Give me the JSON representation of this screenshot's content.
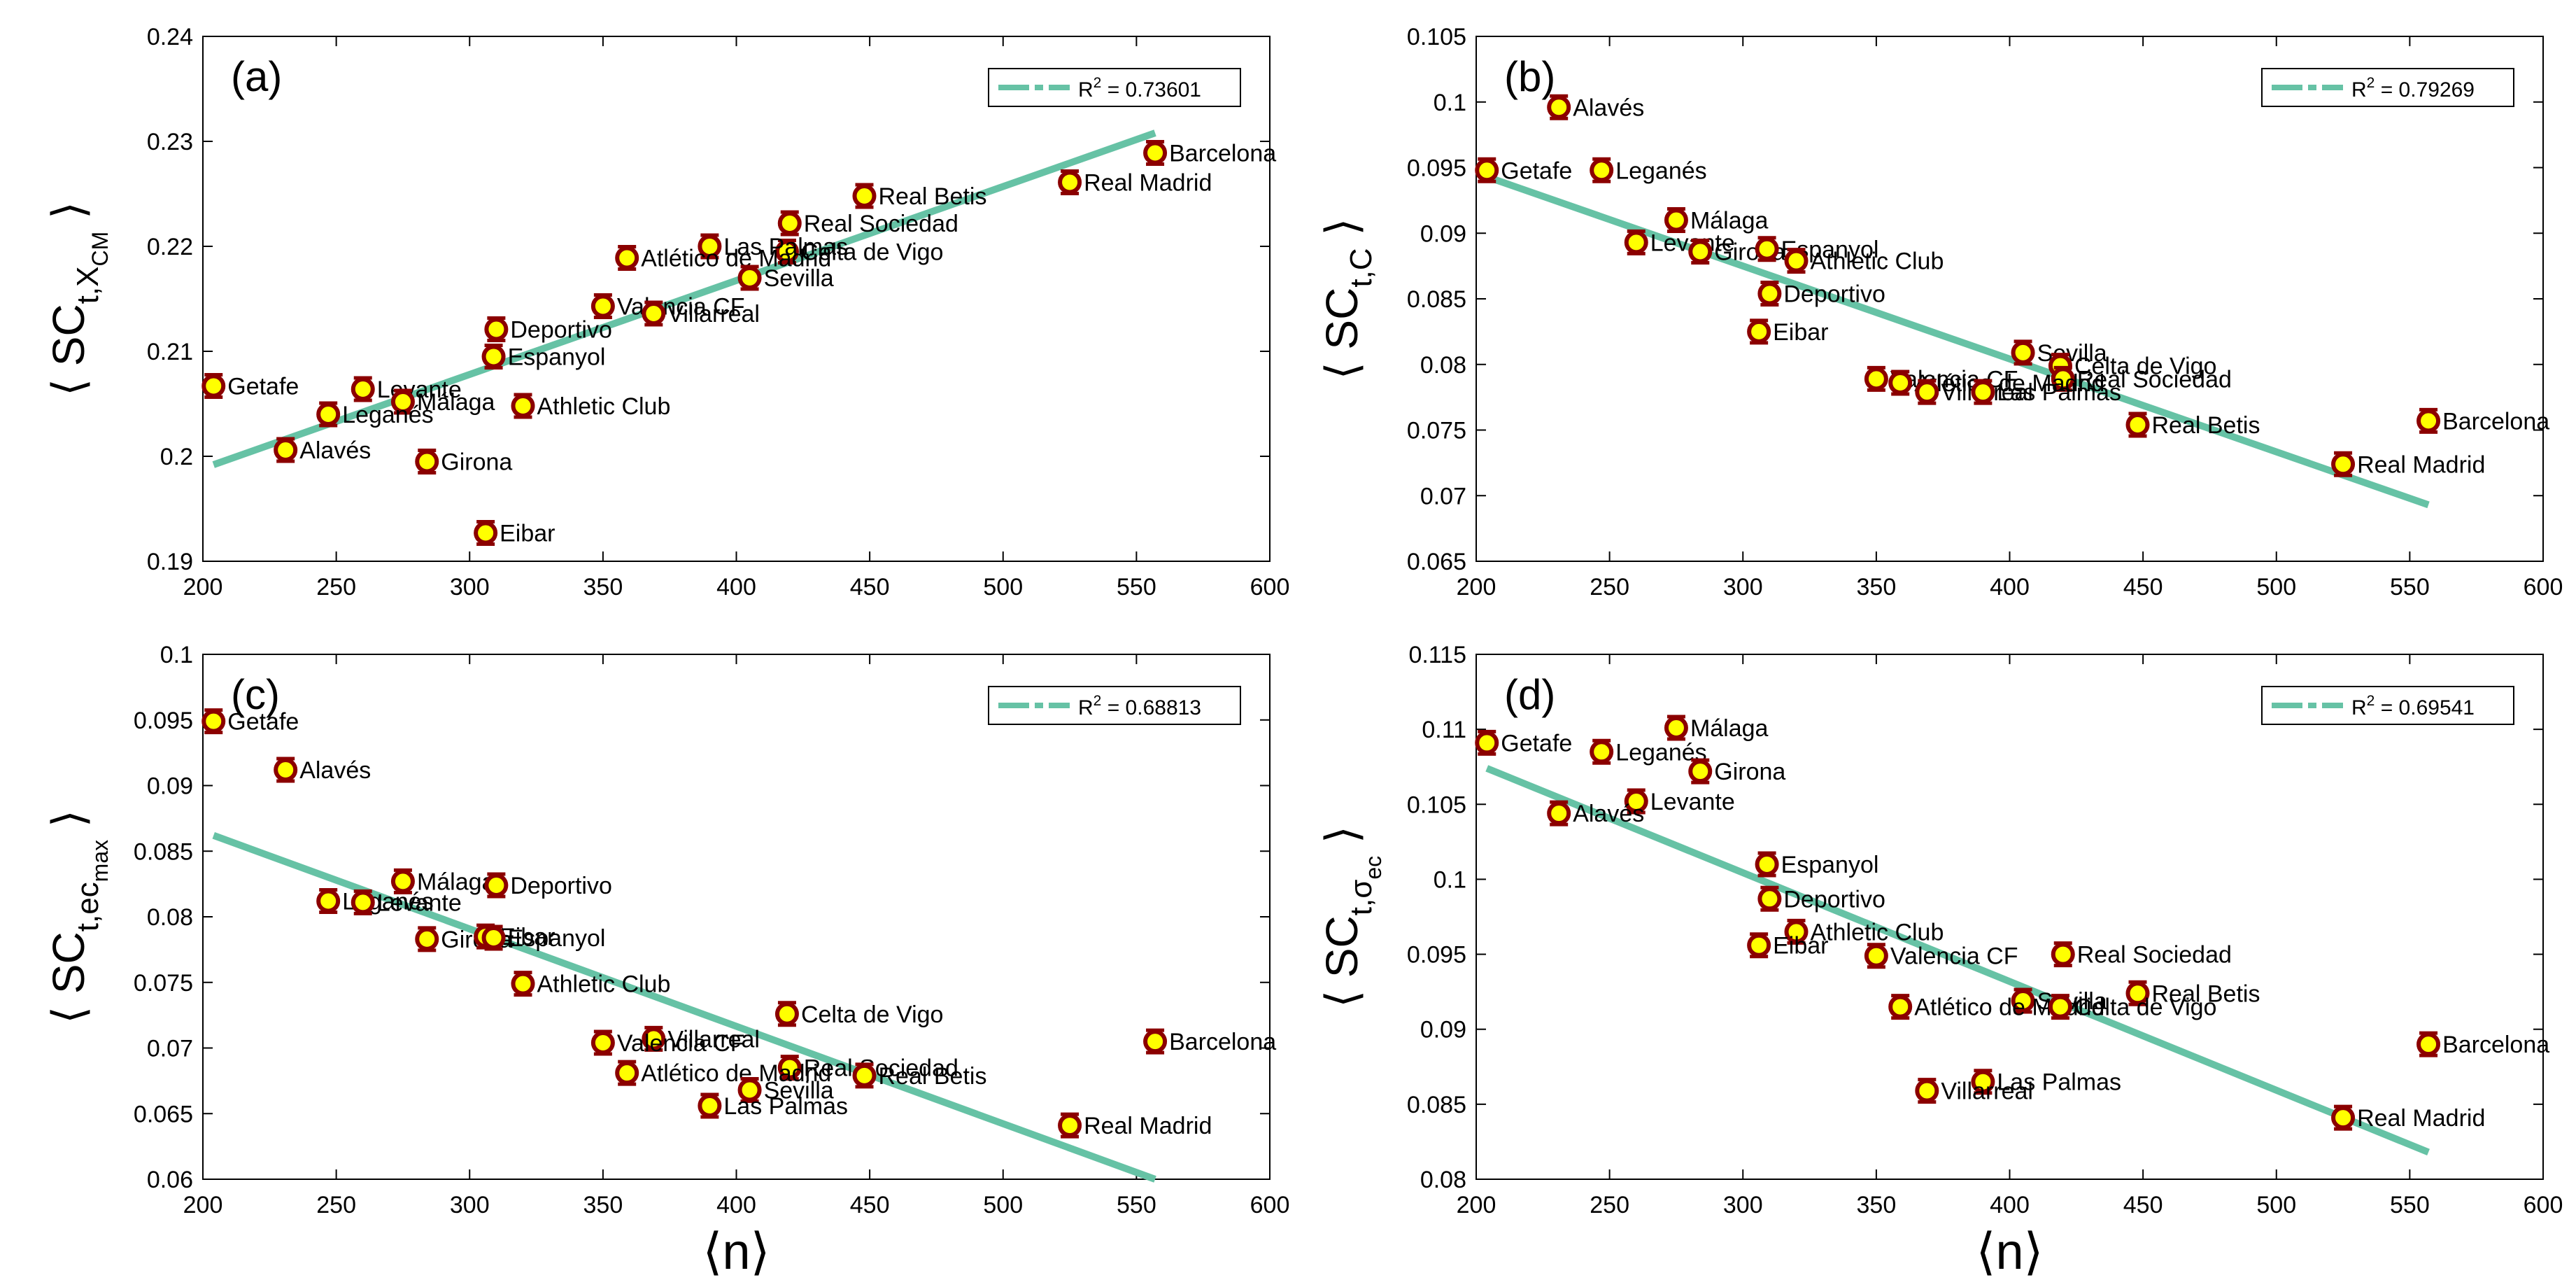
{
  "chart_data": [
    {
      "type": "scatter",
      "panel_label": "(a)",
      "ylabel": {
        "lead": "⟨ SC",
        "sub": "t,X",
        "subsub": "CM",
        "tail": " ⟩"
      },
      "xlabel": "⟨n⟩",
      "xlim": [
        200,
        600
      ],
      "ylim": [
        0.19,
        0.24
      ],
      "xticks": [
        "200",
        "250",
        "300",
        "350",
        "400",
        "450",
        "500",
        "550",
        "600"
      ],
      "yticks": [
        "0.19",
        "0.2",
        "0.21",
        "0.22",
        "0.23",
        "0.24"
      ],
      "legend": {
        "text": "R",
        "sup": "2",
        "value": " = 0.73601",
        "placement": "top-right"
      },
      "fit": {
        "x": [
          204,
          557
        ],
        "y": [
          0.1992,
          0.2308
        ]
      },
      "points": [
        {
          "team": "Barcelona",
          "x": 557,
          "y": 0.2289
        },
        {
          "team": "Real Madrid",
          "x": 525,
          "y": 0.2261
        },
        {
          "team": "Real Betis",
          "x": 448,
          "y": 0.2248
        },
        {
          "team": "Real Sociedad",
          "x": 420,
          "y": 0.2222
        },
        {
          "team": "Celta de Vigo",
          "x": 419,
          "y": 0.2195
        },
        {
          "team": "Las Palmas",
          "x": 390,
          "y": 0.22
        },
        {
          "team": "Atlético de Madrid",
          "x": 359,
          "y": 0.2189
        },
        {
          "team": "Sevilla",
          "x": 405,
          "y": 0.217
        },
        {
          "team": "Valencia CF",
          "x": 350,
          "y": 0.2143
        },
        {
          "team": "Villarreal",
          "x": 369,
          "y": 0.2136
        },
        {
          "team": "Deportivo",
          "x": 310,
          "y": 0.2121
        },
        {
          "team": "Espanyol",
          "x": 309,
          "y": 0.2095
        },
        {
          "team": "Getafe",
          "x": 204,
          "y": 0.2067
        },
        {
          "team": "Levante",
          "x": 260,
          "y": 0.2064
        },
        {
          "team": "Málaga",
          "x": 275,
          "y": 0.2052
        },
        {
          "team": "Athletic Club",
          "x": 320,
          "y": 0.2048
        },
        {
          "team": "Leganés",
          "x": 247,
          "y": 0.204
        },
        {
          "team": "Alavés",
          "x": 231,
          "y": 0.2006
        },
        {
          "team": "Girona",
          "x": 284,
          "y": 0.1995
        },
        {
          "team": "Eibar",
          "x": 306,
          "y": 0.1927
        }
      ]
    },
    {
      "type": "scatter",
      "panel_label": "(b)",
      "ylabel": {
        "lead": "⟨ SC",
        "sub": "t,C",
        "subsub": "",
        "tail": " ⟩"
      },
      "xlabel": "⟨n⟩",
      "xlim": [
        200,
        600
      ],
      "ylim": [
        0.065,
        0.105
      ],
      "xticks": [
        "200",
        "250",
        "300",
        "350",
        "400",
        "450",
        "500",
        "550",
        "600"
      ],
      "yticks": [
        "0.065",
        "0.07",
        "0.075",
        "0.08",
        "0.085",
        "0.09",
        "0.095",
        "0.1",
        "0.105"
      ],
      "legend": {
        "text": "R",
        "sup": "2",
        "value": " = 0.79269",
        "placement": "top-right"
      },
      "fit": {
        "x": [
          204,
          557
        ],
        "y": [
          0.0943,
          0.0693
        ]
      },
      "points": [
        {
          "team": "Alavés",
          "x": 231,
          "y": 0.0996
        },
        {
          "team": "Getafe",
          "x": 204,
          "y": 0.0948
        },
        {
          "team": "Leganés",
          "x": 247,
          "y": 0.0948
        },
        {
          "team": "Málaga",
          "x": 275,
          "y": 0.091
        },
        {
          "team": "Levante",
          "x": 260,
          "y": 0.0893
        },
        {
          "team": "Girona",
          "x": 284,
          "y": 0.0886
        },
        {
          "team": "Espanyol",
          "x": 309,
          "y": 0.0888
        },
        {
          "team": "Athletic Club",
          "x": 320,
          "y": 0.0879
        },
        {
          "team": "Deportivo",
          "x": 310,
          "y": 0.0854
        },
        {
          "team": "Eibar",
          "x": 306,
          "y": 0.0825
        },
        {
          "team": "Sevilla",
          "x": 405,
          "y": 0.0809
        },
        {
          "team": "Celta de Vigo",
          "x": 419,
          "y": 0.0799
        },
        {
          "team": "Real Sociedad",
          "x": 420,
          "y": 0.0789
        },
        {
          "team": "Valencia CF",
          "x": 350,
          "y": 0.0789
        },
        {
          "team": "Atlético de Madrid",
          "x": 359,
          "y": 0.0786
        },
        {
          "team": "Villarreal",
          "x": 369,
          "y": 0.0779
        },
        {
          "team": "Las Palmas",
          "x": 390,
          "y": 0.0779
        },
        {
          "team": "Barcelona",
          "x": 557,
          "y": 0.0757
        },
        {
          "team": "Real Betis",
          "x": 448,
          "y": 0.0754
        },
        {
          "team": "Real Madrid",
          "x": 525,
          "y": 0.0724
        }
      ]
    },
    {
      "type": "scatter",
      "panel_label": "(c)",
      "ylabel": {
        "lead": "⟨ SC",
        "sub": "t,ec",
        "subsub": "max",
        "tail": " ⟩"
      },
      "xlabel": "⟨n⟩",
      "xlim": [
        200,
        600
      ],
      "ylim": [
        0.06,
        0.1
      ],
      "xticks": [
        "200",
        "250",
        "300",
        "350",
        "400",
        "450",
        "500",
        "550",
        "600"
      ],
      "yticks": [
        "0.06",
        "0.065",
        "0.07",
        "0.075",
        "0.08",
        "0.085",
        "0.09",
        "0.095",
        "0.1"
      ],
      "legend": {
        "text": "R",
        "sup": "2",
        "value": " = 0.68813",
        "placement": "top-right"
      },
      "fit": {
        "x": [
          204,
          557
        ],
        "y": [
          0.0862,
          0.06
        ]
      },
      "points": [
        {
          "team": "Getafe",
          "x": 204,
          "y": 0.0949
        },
        {
          "team": "Alavés",
          "x": 231,
          "y": 0.0912
        },
        {
          "team": "Málaga",
          "x": 275,
          "y": 0.0827
        },
        {
          "team": "Deportivo",
          "x": 310,
          "y": 0.0824
        },
        {
          "team": "Leganés",
          "x": 247,
          "y": 0.0812
        },
        {
          "team": "Levante",
          "x": 260,
          "y": 0.0811
        },
        {
          "team": "Girona",
          "x": 284,
          "y": 0.0783
        },
        {
          "team": "Eibar",
          "x": 306,
          "y": 0.0785
        },
        {
          "team": "Espanyol",
          "x": 309,
          "y": 0.0784
        },
        {
          "team": "Athletic Club",
          "x": 320,
          "y": 0.0749
        },
        {
          "team": "Celta de Vigo",
          "x": 419,
          "y": 0.0726
        },
        {
          "team": "Villarreal",
          "x": 369,
          "y": 0.0707
        },
        {
          "team": "Barcelona",
          "x": 557,
          "y": 0.0705
        },
        {
          "team": "Valencia CF",
          "x": 350,
          "y": 0.0704
        },
        {
          "team": "Real Sociedad",
          "x": 420,
          "y": 0.0685
        },
        {
          "team": "Atlético de Madrid",
          "x": 359,
          "y": 0.0681
        },
        {
          "team": "Real Betis",
          "x": 448,
          "y": 0.0679
        },
        {
          "team": "Sevilla",
          "x": 405,
          "y": 0.0668
        },
        {
          "team": "Las Palmas",
          "x": 390,
          "y": 0.0656
        },
        {
          "team": "Real Madrid",
          "x": 525,
          "y": 0.0641
        }
      ]
    },
    {
      "type": "scatter",
      "panel_label": "(d)",
      "ylabel": {
        "lead": "⟨ SC",
        "sub": "t,σ",
        "subsub": "ec",
        "tail": " ⟩"
      },
      "xlabel": "⟨n⟩",
      "xlim": [
        200,
        600
      ],
      "ylim": [
        0.08,
        0.115
      ],
      "xticks": [
        "200",
        "250",
        "300",
        "350",
        "400",
        "450",
        "500",
        "550",
        "600"
      ],
      "yticks": [
        "0.08",
        "0.085",
        "0.09",
        "0.095",
        "0.1",
        "0.105",
        "0.11",
        "0.115"
      ],
      "legend": {
        "text": "R",
        "sup": "2",
        "value": " = 0.69541",
        "placement": "top-right"
      },
      "fit": {
        "x": [
          204,
          557
        ],
        "y": [
          0.1074,
          0.0818
        ]
      },
      "points": [
        {
          "team": "Málaga",
          "x": 275,
          "y": 0.1101
        },
        {
          "team": "Getafe",
          "x": 204,
          "y": 0.1091
        },
        {
          "team": "Leganés",
          "x": 247,
          "y": 0.1085
        },
        {
          "team": "Girona",
          "x": 284,
          "y": 0.1072
        },
        {
          "team": "Levante",
          "x": 260,
          "y": 0.1052
        },
        {
          "team": "Alavés",
          "x": 231,
          "y": 0.1044
        },
        {
          "team": "Espanyol",
          "x": 309,
          "y": 0.101
        },
        {
          "team": "Deportivo",
          "x": 310,
          "y": 0.0987
        },
        {
          "team": "Athletic Club",
          "x": 320,
          "y": 0.0965
        },
        {
          "team": "Eibar",
          "x": 306,
          "y": 0.0956
        },
        {
          "team": "Valencia CF",
          "x": 350,
          "y": 0.0949
        },
        {
          "team": "Real Sociedad",
          "x": 420,
          "y": 0.095
        },
        {
          "team": "Real Betis",
          "x": 448,
          "y": 0.0924
        },
        {
          "team": "Sevilla",
          "x": 405,
          "y": 0.0919
        },
        {
          "team": "Atlético de Madrid",
          "x": 359,
          "y": 0.0915
        },
        {
          "team": "Celta de Vigo",
          "x": 419,
          "y": 0.0915
        },
        {
          "team": "Barcelona",
          "x": 557,
          "y": 0.089
        },
        {
          "team": "Las Palmas",
          "x": 390,
          "y": 0.0865
        },
        {
          "team": "Villarreal",
          "x": 369,
          "y": 0.0859
        },
        {
          "team": "Real Madrid",
          "x": 525,
          "y": 0.0841
        }
      ]
    }
  ],
  "colors": {
    "fit_line": "#66c2a5",
    "marker_fill": "#ffff00",
    "marker_edge": "#8b0000",
    "axis": "#000000",
    "background": "#ffffff"
  }
}
